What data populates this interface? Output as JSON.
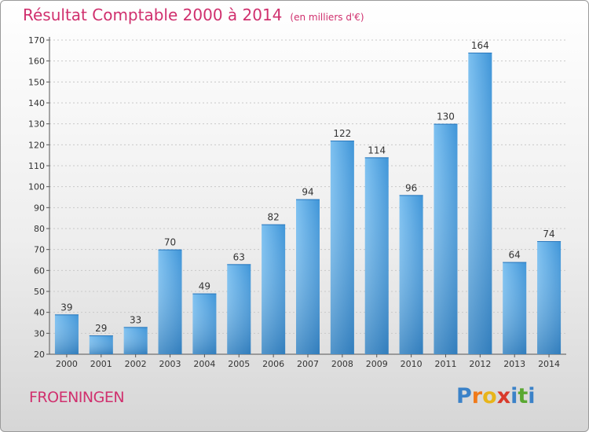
{
  "chart_data": {
    "type": "bar",
    "title": "Résultat Comptable 2000 à 2014",
    "subtitle": "(en milliers d'€)",
    "categories": [
      "2000",
      "2001",
      "2002",
      "2003",
      "2004",
      "2005",
      "2006",
      "2007",
      "2008",
      "2009",
      "2010",
      "2011",
      "2012",
      "2013",
      "2014"
    ],
    "values": [
      39,
      29,
      33,
      70,
      49,
      63,
      82,
      94,
      122,
      114,
      96,
      130,
      164,
      64,
      74
    ],
    "ylim": [
      20,
      170
    ],
    "yticks": [
      20,
      30,
      40,
      50,
      60,
      70,
      80,
      90,
      100,
      110,
      120,
      130,
      140,
      150,
      160,
      170
    ],
    "grid": true,
    "xlabel": "",
    "ylabel": ""
  },
  "commune": "FROENINGEN",
  "logo": {
    "letters": [
      "P",
      "r",
      "o",
      "x",
      "i",
      "t",
      "i"
    ]
  },
  "colors": {
    "title": "#d0306e",
    "bar_light": "#5fb0ea",
    "bar_dark": "#2a7fc4",
    "logo": [
      "#3b82c8",
      "#f07a1a",
      "#e8b51a",
      "#d93a2b",
      "#3b82c8",
      "#5aa832",
      "#3b82c8"
    ]
  }
}
